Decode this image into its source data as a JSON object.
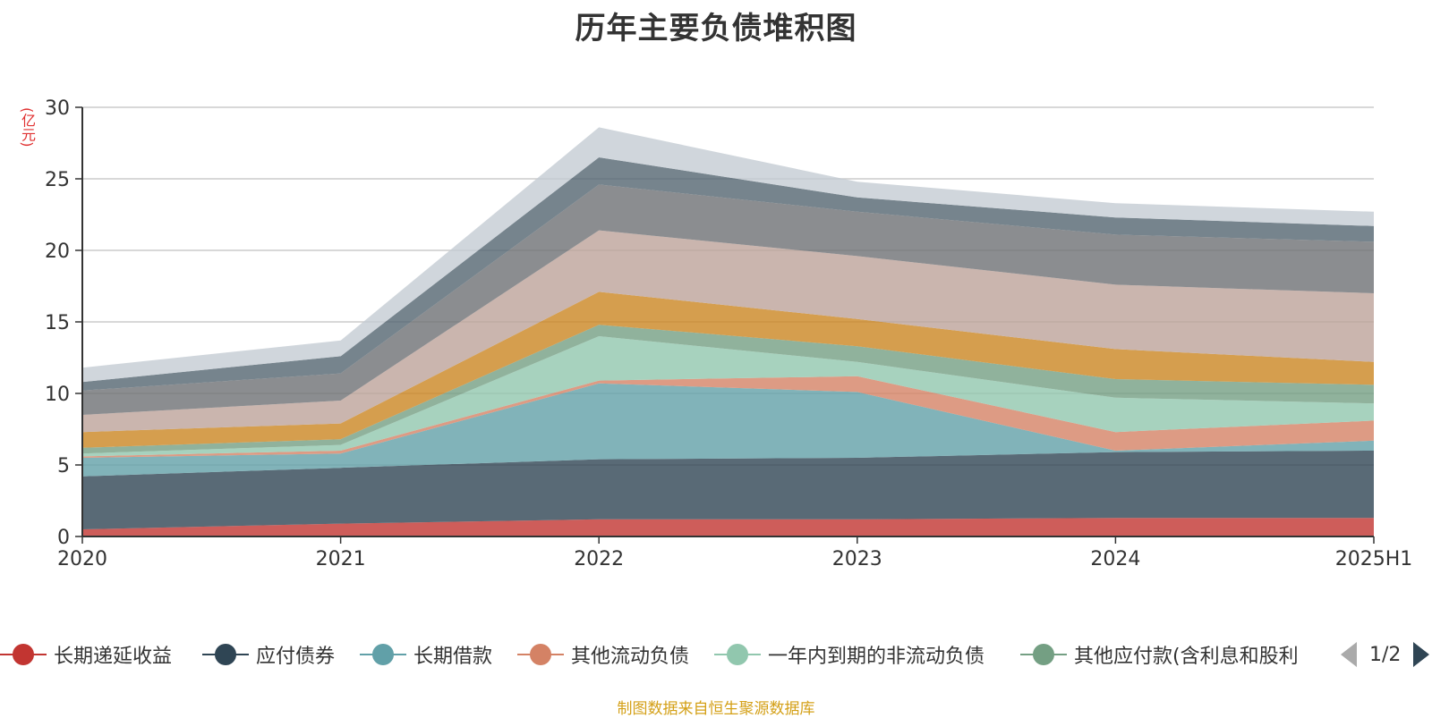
{
  "chart_data": {
    "type": "area",
    "stacked": true,
    "title": "历年主要负债堆积图",
    "y_unit": "(亿元)",
    "categories": [
      "2020",
      "2021",
      "2022",
      "2023",
      "2024",
      "2025H1"
    ],
    "ylim": [
      0,
      30
    ],
    "yticks": [
      0,
      5,
      10,
      15,
      20,
      25,
      30
    ],
    "grid": true,
    "series": [
      {
        "name": "长期递延收益",
        "color": "#c23531",
        "values": [
          0.5,
          0.9,
          1.2,
          1.2,
          1.3,
          1.3
        ]
      },
      {
        "name": "应付债券",
        "color": "#2f4554",
        "values": [
          3.7,
          3.9,
          4.2,
          4.3,
          4.6,
          4.7
        ]
      },
      {
        "name": "长期借款",
        "color": "#61a0a8",
        "values": [
          1.3,
          1.0,
          5.3,
          4.6,
          0.1,
          0.7
        ]
      },
      {
        "name": "其他流动负债",
        "color": "#d48265",
        "values": [
          0.1,
          0.2,
          0.2,
          1.1,
          1.3,
          1.4
        ]
      },
      {
        "name": "一年内到期的非流动负债",
        "color": "#91c7ae",
        "values": [
          0.2,
          0.4,
          3.1,
          1.0,
          2.4,
          1.2
        ]
      },
      {
        "name": "其他应付款(含利息和股利)",
        "color": "#749f83",
        "values": [
          0.4,
          0.4,
          0.8,
          1.1,
          1.3,
          1.3
        ]
      },
      {
        "name": "",
        "color": "#ca8622",
        "values": [
          1.1,
          1.1,
          2.3,
          1.9,
          2.1,
          1.6
        ]
      },
      {
        "name": "",
        "color": "#bda29a",
        "values": [
          1.2,
          1.6,
          4.3,
          4.4,
          4.5,
          4.8
        ]
      },
      {
        "name": "",
        "color": "#6e7074",
        "values": [
          1.7,
          1.9,
          3.2,
          3.1,
          3.5,
          3.6
        ]
      },
      {
        "name": "",
        "color": "#546570",
        "values": [
          0.6,
          1.2,
          1.9,
          1.0,
          1.2,
          1.1
        ]
      },
      {
        "name": "",
        "color": "#c4ccd3",
        "values": [
          1.0,
          1.1,
          2.1,
          1.1,
          1.0,
          1.0
        ]
      }
    ],
    "legend": {
      "position": "bottom",
      "visible_items": [
        "长期递延收益",
        "应付债券",
        "长期借款",
        "其他流动负债",
        "一年内到期的非流动负债",
        "其他应付款(含利息和股利"
      ],
      "page": "1/2"
    }
  },
  "source_note": "制图数据来自恒生聚源数据库",
  "icons": {
    "prev": "triangle-left-icon",
    "next": "triangle-right-icon"
  }
}
